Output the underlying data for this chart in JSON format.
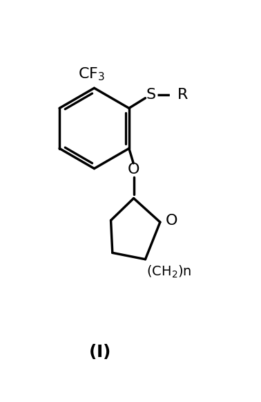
{
  "background_color": "#ffffff",
  "line_color": "#000000",
  "line_width": 2.5,
  "font_size": 15,
  "font_size_title": 18,
  "figsize": [
    3.78,
    5.81
  ],
  "dpi": 100,
  "title": "(I)",
  "xlim": [
    0,
    10
  ],
  "ylim": [
    0,
    14
  ]
}
